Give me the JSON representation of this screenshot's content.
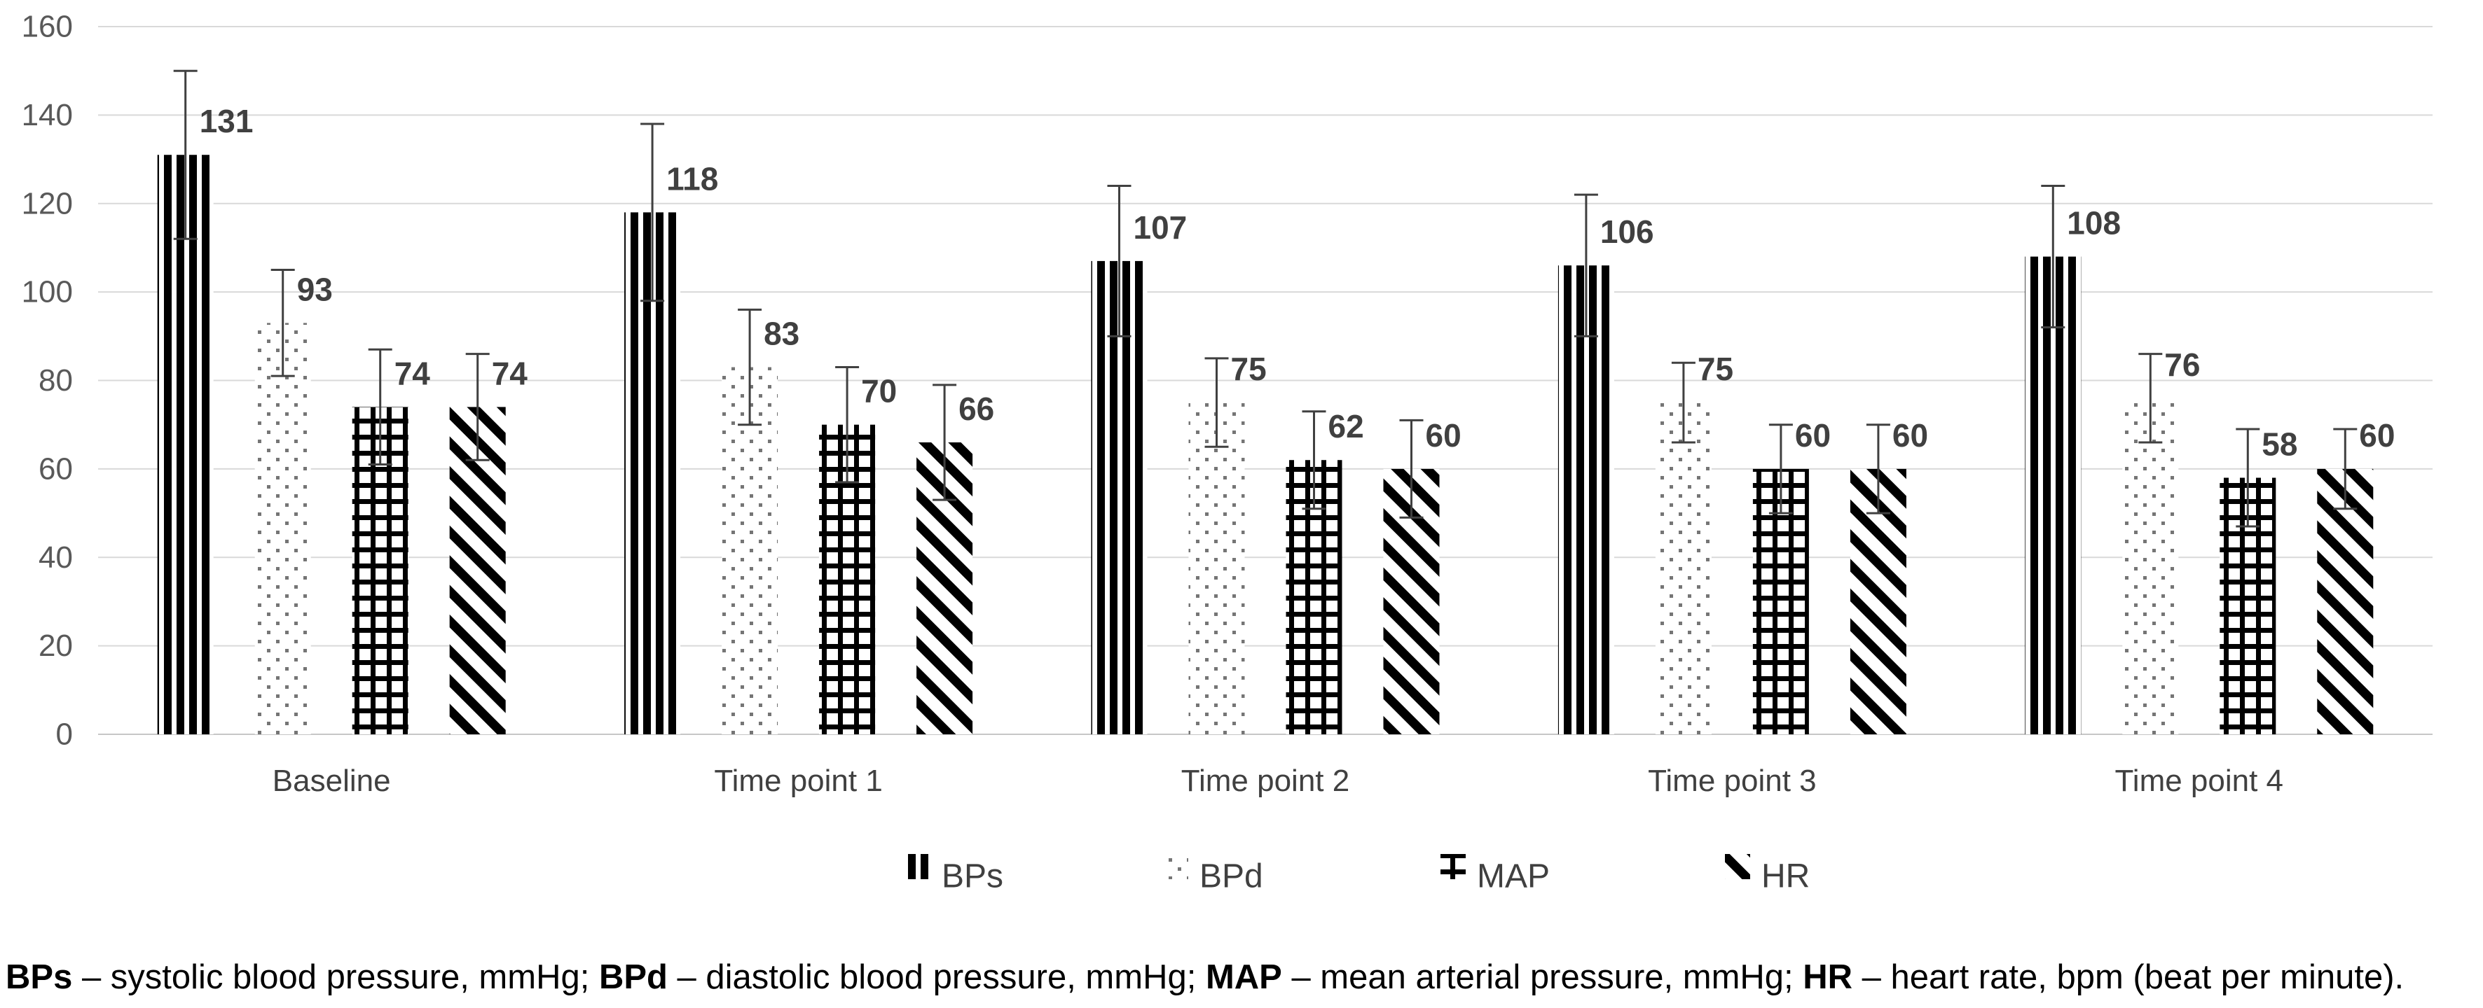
{
  "page": {
    "background": "#ffffff"
  },
  "chart_data": {
    "type": "bar",
    "title": "",
    "xlabel": "",
    "ylabel": "",
    "categories": [
      "Baseline",
      "Time point 1",
      "Time point 2",
      "Time point 3",
      "Time point 4"
    ],
    "series": [
      {
        "name": "BPs",
        "pattern": "vertical-stripes",
        "values": [
          131,
          118,
          107,
          106,
          108
        ],
        "errors": [
          19,
          20,
          17,
          16,
          16
        ]
      },
      {
        "name": "BPd",
        "pattern": "dots",
        "values": [
          93,
          83,
          75,
          75,
          76
        ],
        "errors": [
          12,
          13,
          10,
          9,
          10
        ]
      },
      {
        "name": "MAP",
        "pattern": "grid",
        "values": [
          74,
          70,
          62,
          60,
          58
        ],
        "errors": [
          13,
          13,
          11,
          10,
          11
        ]
      },
      {
        "name": "HR",
        "pattern": "diagonal-stripes",
        "values": [
          74,
          66,
          60,
          60,
          60
        ],
        "errors": [
          12,
          13,
          11,
          10,
          9
        ]
      }
    ],
    "ylim": [
      0,
      160
    ],
    "ytick_step": 20,
    "ytick_labels": [
      "0",
      "20",
      "40",
      "60",
      "80",
      "100",
      "120",
      "140",
      "160"
    ],
    "grid": true,
    "bar_value_labels": true,
    "error_bars": true,
    "legend_position": "bottom"
  },
  "legend": {
    "items": [
      {
        "label": "BPs",
        "pattern": "vertical-stripes"
      },
      {
        "label": "BPd",
        "pattern": "dots"
      },
      {
        "label": "MAP",
        "pattern": "grid"
      },
      {
        "label": "HR",
        "pattern": "diagonal-stripes"
      }
    ]
  },
  "footnote": {
    "segments": [
      {
        "bold": "BPs",
        "text": " – systolic blood pressure, mmHg; "
      },
      {
        "bold": "BPd",
        "text": " – diastolic blood pressure, mmHg; "
      },
      {
        "bold": "MAP",
        "text": " – mean arterial pressure, mmHg; "
      },
      {
        "bold": "HR",
        "text": " – heart rate, bpm (beat per minute)."
      }
    ]
  },
  "colors": {
    "bar_black": "#000000",
    "bar_background": "#ffffff",
    "dot_gray": "#757575",
    "grid_line": "#d9d9d9",
    "axis_line": "#c6c6c6",
    "tick_label": "#595959",
    "category_label": "#404040",
    "value_label": "#404040",
    "error_bar": "#404040",
    "legend_label": "#404040",
    "footnote_text": "#000000"
  }
}
